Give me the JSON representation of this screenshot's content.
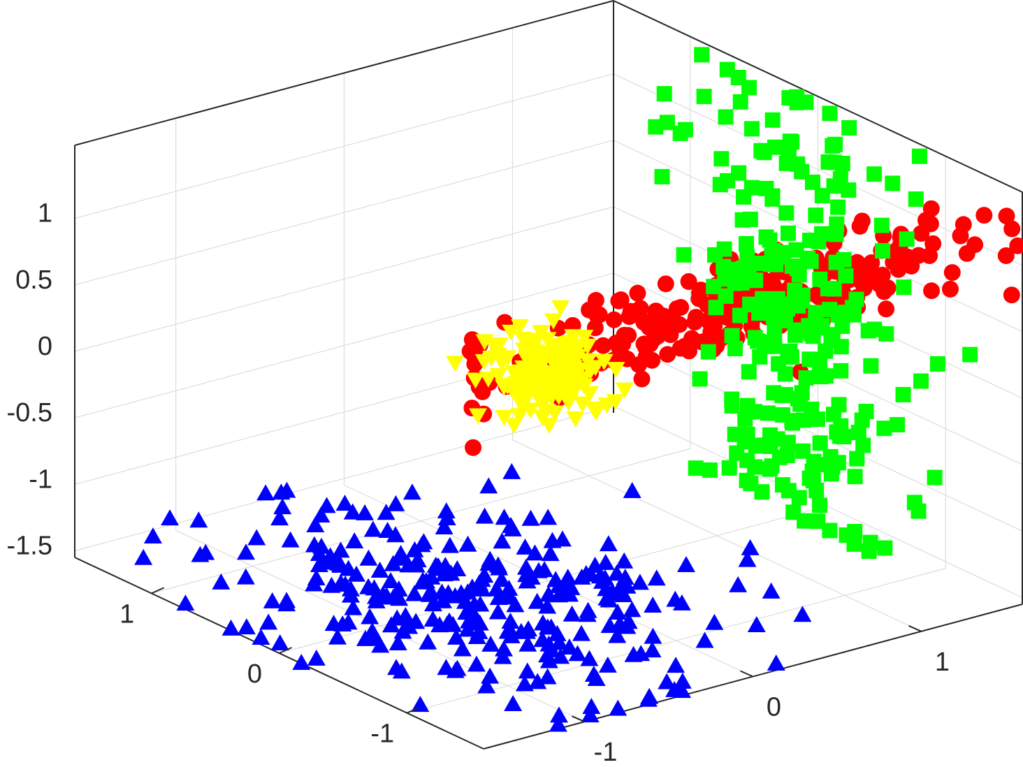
{
  "chart_data": {
    "type": "scatter3d",
    "title": "",
    "xlabel": "",
    "ylabel": "",
    "zlabel": "",
    "grid": true,
    "legend": "none",
    "xlim": [
      -1.6,
      1.6
    ],
    "ylim": [
      -1.6,
      1.6
    ],
    "zlim": [
      -1.55,
      1.55
    ],
    "x_ticks": [
      {
        "value": -1,
        "label": "-1"
      },
      {
        "value": 0,
        "label": "0"
      },
      {
        "value": 1,
        "label": "1"
      }
    ],
    "y_ticks": [
      {
        "value": -1,
        "label": "-1"
      },
      {
        "value": 0,
        "label": "0"
      },
      {
        "value": 1,
        "label": "1"
      }
    ],
    "z_ticks": [
      {
        "value": -1.5,
        "label": "-1.5"
      },
      {
        "value": -1,
        "label": "-1"
      },
      {
        "value": -0.5,
        "label": "-0.5"
      },
      {
        "value": 0,
        "label": "0"
      },
      {
        "value": 0.5,
        "label": "0.5"
      },
      {
        "value": 1,
        "label": "1"
      }
    ],
    "series": [
      {
        "marker": "circle",
        "color": "#ff0000",
        "center": [
          -1.5,
          0.0,
          1.2
        ],
        "spread": [
          0.03,
          0.75,
          0.18
        ],
        "count": 260
      },
      {
        "marker": "square",
        "color": "#00ff00",
        "center": [
          0.0,
          1.5,
          -0.2
        ],
        "spread": [
          0.45,
          0.03,
          0.95
        ],
        "count": 260
      },
      {
        "marker": "triangle-down",
        "color": "#ffff00",
        "center": [
          0.0,
          0.0,
          0.0
        ],
        "spread": [
          0.15,
          0.15,
          0.15
        ],
        "count": 160
      },
      {
        "marker": "triangle-up",
        "color": "#0000ff",
        "center": [
          0.0,
          -0.5,
          -1.5
        ],
        "spread": [
          0.7,
          0.5,
          0.03
        ],
        "count": 300
      }
    ]
  }
}
